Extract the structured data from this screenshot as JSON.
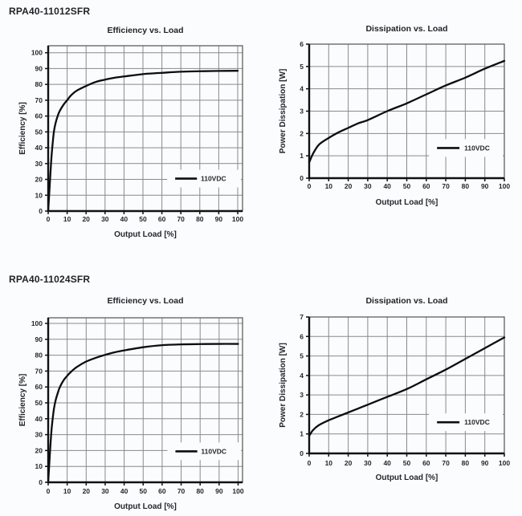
{
  "page": {
    "background": "#fbfcfd",
    "sections": [
      {
        "heading": "RPA40-11012SFR"
      },
      {
        "heading": "RPA40-11024SFR"
      }
    ]
  },
  "colors": {
    "text": "#1f2326",
    "grid": "#8a8a8a",
    "plot_border": "#5f5f5f",
    "axis": "#111111",
    "curve": "#0d0d0d",
    "legend_box": "#fbfcfd"
  },
  "chart_data": [
    {
      "id": "efficiency-rpa40-11012sfr",
      "model": "RPA40-11012SFR",
      "type": "line",
      "title": "Efficiency vs. Load",
      "xlabel": "Output Load [%]",
      "ylabel": "Efficiency [%]",
      "xlim": [
        0,
        100
      ],
      "ylim": [
        0,
        100
      ],
      "xticks": [
        0,
        10,
        20,
        30,
        40,
        50,
        60,
        70,
        80,
        90,
        100
      ],
      "yticks": [
        0,
        10,
        20,
        30,
        40,
        50,
        60,
        70,
        80,
        90,
        100
      ],
      "grid": true,
      "legend": {
        "label": "110VDC",
        "position": "inside lower right",
        "line_y": 20.5,
        "line_x": [
          67,
          78.5
        ],
        "text_x": 80.5
      },
      "series": [
        {
          "name": "110VDC",
          "x": [
            0,
            0.5,
            1,
            1.5,
            2,
            3,
            4,
            5,
            6,
            8,
            10,
            12,
            15,
            20,
            25,
            30,
            35,
            40,
            50,
            60,
            70,
            80,
            90,
            100
          ],
          "y": [
            0,
            10,
            20,
            30,
            38,
            50,
            56,
            60,
            63,
            67,
            70,
            73,
            76,
            79,
            81.5,
            83,
            84.2,
            85,
            86.5,
            87.3,
            88,
            88.3,
            88.5,
            88.6
          ]
        }
      ]
    },
    {
      "id": "dissipation-rpa40-11012sfr",
      "model": "RPA40-11012SFR",
      "type": "line",
      "title": "Dissipation vs. Load",
      "xlabel": "Output Load [%]",
      "ylabel": "Power Dissipation [W]",
      "xlim": [
        0,
        100
      ],
      "ylim": [
        0,
        6
      ],
      "xticks": [
        0,
        10,
        20,
        30,
        40,
        50,
        60,
        70,
        80,
        90,
        100
      ],
      "yticks": [
        0,
        1,
        2,
        3,
        4,
        5,
        6
      ],
      "grid": true,
      "legend": {
        "label": "110VDC",
        "position": "inside lower right",
        "line_y": 1.35,
        "line_x": [
          65.5,
          77
        ],
        "text_x": 79.5
      },
      "series": [
        {
          "name": "110VDC",
          "x": [
            0,
            2,
            5,
            10,
            15,
            20,
            25,
            30,
            40,
            50,
            60,
            70,
            80,
            90,
            100
          ],
          "y": [
            0.7,
            1.1,
            1.5,
            1.8,
            2.05,
            2.25,
            2.45,
            2.6,
            3.0,
            3.35,
            3.75,
            4.15,
            4.5,
            4.9,
            5.25
          ]
        }
      ]
    },
    {
      "id": "efficiency-rpa40-11024sfr",
      "model": "RPA40-11024SFR",
      "type": "line",
      "title": "Efficiency vs. Load",
      "xlabel": "Output Load [%]",
      "ylabel": "Efficiency [%]",
      "xlim": [
        0,
        100
      ],
      "ylim": [
        0,
        100
      ],
      "xticks": [
        0,
        10,
        20,
        30,
        40,
        50,
        60,
        70,
        80,
        90,
        100
      ],
      "yticks": [
        0,
        10,
        20,
        30,
        40,
        50,
        60,
        70,
        80,
        90,
        100
      ],
      "grid": true,
      "legend": {
        "label": "110VDC",
        "position": "inside lower right",
        "line_y": 19.5,
        "line_x": [
          67,
          78.5
        ],
        "text_x": 80.5
      },
      "series": [
        {
          "name": "110VDC",
          "x": [
            0,
            0.5,
            1,
            1.5,
            2,
            3,
            4,
            5,
            6,
            8,
            10,
            12,
            15,
            20,
            25,
            30,
            35,
            40,
            50,
            60,
            70,
            80,
            90,
            100
          ],
          "y": [
            0,
            10,
            20,
            29,
            36,
            46,
            52,
            56,
            59.5,
            64,
            67,
            69.5,
            72.5,
            76,
            78.3,
            80.2,
            81.8,
            83,
            85,
            86.3,
            86.8,
            87,
            87.1,
            87.1
          ]
        }
      ]
    },
    {
      "id": "dissipation-rpa40-11024sfr",
      "model": "RPA40-11024SFR",
      "type": "line",
      "title": "Dissipation vs. Load",
      "xlabel": "Output Load [%]",
      "ylabel": "Power Dissipation [W]",
      "xlim": [
        0,
        100
      ],
      "ylim": [
        0,
        7
      ],
      "xticks": [
        0,
        10,
        20,
        30,
        40,
        50,
        60,
        70,
        80,
        90,
        100
      ],
      "yticks": [
        0,
        1,
        2,
        3,
        4,
        5,
        6,
        7
      ],
      "grid": true,
      "legend": {
        "label": "110VDC",
        "position": "inside lower right",
        "line_y": 1.6,
        "line_x": [
          65.5,
          77
        ],
        "text_x": 79.5
      },
      "series": [
        {
          "name": "110VDC",
          "x": [
            0,
            2,
            5,
            10,
            15,
            20,
            25,
            30,
            40,
            50,
            60,
            70,
            80,
            90,
            100
          ],
          "y": [
            0.9,
            1.2,
            1.45,
            1.7,
            1.9,
            2.1,
            2.3,
            2.5,
            2.9,
            3.3,
            3.8,
            4.3,
            4.85,
            5.4,
            5.95
          ]
        }
      ]
    }
  ]
}
